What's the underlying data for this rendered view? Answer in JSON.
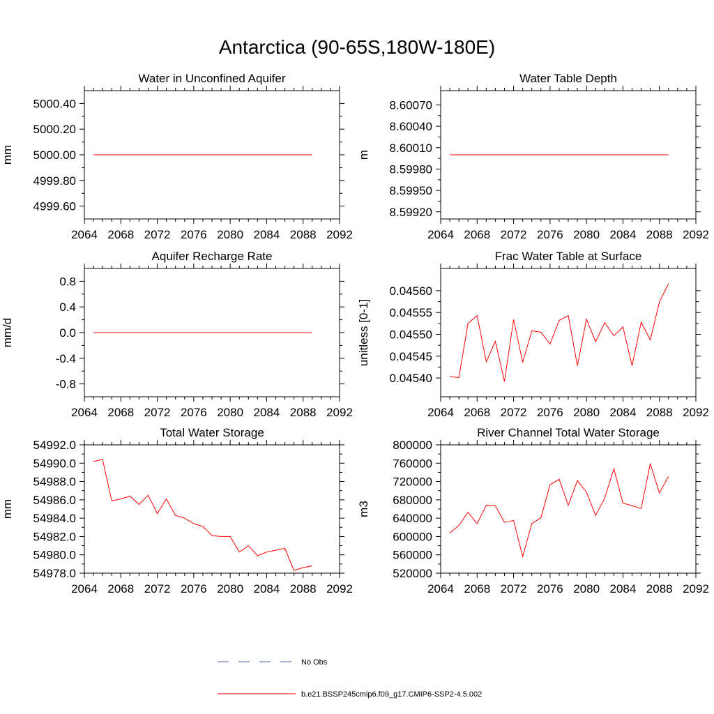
{
  "title": "Antarctica (90-65S,180W-180E)",
  "colors": {
    "model": "#ff0000",
    "obs": "#4f5fb0",
    "axis": "#000000"
  },
  "legend": {
    "obs_label": "No Obs",
    "model_label": "b.e21.BSSP245cmip6.f09_g17.CMIP6-SSP2-4.5.002"
  },
  "chart_data": [
    {
      "type": "line",
      "title": "Water in Unconfined Aquifer",
      "xlabel": "",
      "ylabel": "mm",
      "xlim": [
        2064,
        2092
      ],
      "ylim": [
        4999.5,
        5000.5
      ],
      "xticks": [
        2064,
        2068,
        2072,
        2076,
        2080,
        2084,
        2088,
        2092
      ],
      "xtick_labels": [
        "2064",
        "2068",
        "2072",
        "2076",
        "2080",
        "2084",
        "2088",
        "2092"
      ],
      "yticks": [
        4999.6,
        4999.8,
        5000.0,
        5000.2,
        5000.4
      ],
      "ytick_labels": [
        "4999.60",
        "4999.80",
        "5000.00",
        "5000.20",
        "5000.40"
      ],
      "grid": false,
      "x": [
        2065,
        2066,
        2067,
        2068,
        2069,
        2070,
        2071,
        2072,
        2073,
        2074,
        2075,
        2076,
        2077,
        2078,
        2079,
        2080,
        2081,
        2082,
        2083,
        2084,
        2085,
        2086,
        2087,
        2088,
        2089
      ],
      "series": [
        {
          "values": [
            5000,
            5000,
            5000,
            5000,
            5000,
            5000,
            5000,
            5000,
            5000,
            5000,
            5000,
            5000,
            5000,
            5000,
            5000,
            5000,
            5000,
            5000,
            5000,
            5000,
            5000,
            5000,
            5000,
            5000,
            5000
          ]
        }
      ]
    },
    {
      "type": "line",
      "title": "Water Table Depth",
      "xlabel": "",
      "ylabel": "m",
      "xlim": [
        2064,
        2092
      ],
      "ylim": [
        8.5991,
        8.6009
      ],
      "xticks": [
        2064,
        2068,
        2072,
        2076,
        2080,
        2084,
        2088,
        2092
      ],
      "xtick_labels": [
        "2064",
        "2068",
        "2072",
        "2076",
        "2080",
        "2084",
        "2088",
        "2092"
      ],
      "yticks": [
        8.5992,
        8.5995,
        8.5998,
        8.6001,
        8.6004,
        8.6007
      ],
      "ytick_labels": [
        "8.59920",
        "8.59950",
        "8.59980",
        "8.60010",
        "8.60040",
        "8.60070"
      ],
      "grid": false,
      "x": [
        2065,
        2066,
        2067,
        2068,
        2069,
        2070,
        2071,
        2072,
        2073,
        2074,
        2075,
        2076,
        2077,
        2078,
        2079,
        2080,
        2081,
        2082,
        2083,
        2084,
        2085,
        2086,
        2087,
        2088,
        2089
      ],
      "series": [
        {
          "values": [
            8.6,
            8.6,
            8.6,
            8.6,
            8.6,
            8.6,
            8.6,
            8.6,
            8.6,
            8.6,
            8.6,
            8.6,
            8.6,
            8.6,
            8.6,
            8.6,
            8.6,
            8.6,
            8.6,
            8.6,
            8.6,
            8.6,
            8.6,
            8.6,
            8.6
          ]
        }
      ]
    },
    {
      "type": "line",
      "title": "Aquifer Recharge Rate",
      "xlabel": "",
      "ylabel": "mm/d",
      "xlim": [
        2064,
        2092
      ],
      "ylim": [
        -1.0,
        1.0
      ],
      "xticks": [
        2064,
        2068,
        2072,
        2076,
        2080,
        2084,
        2088,
        2092
      ],
      "xtick_labels": [
        "2064",
        "2068",
        "2072",
        "2076",
        "2080",
        "2084",
        "2088",
        "2092"
      ],
      "yticks": [
        -0.8,
        -0.4,
        0.0,
        0.4,
        0.8
      ],
      "ytick_labels": [
        "-0.8",
        "-0.4",
        "0.0",
        "0.4",
        "0.8"
      ],
      "grid": false,
      "x": [
        2065,
        2066,
        2067,
        2068,
        2069,
        2070,
        2071,
        2072,
        2073,
        2074,
        2075,
        2076,
        2077,
        2078,
        2079,
        2080,
        2081,
        2082,
        2083,
        2084,
        2085,
        2086,
        2087,
        2088,
        2089
      ],
      "series": [
        {
          "values": [
            0,
            0,
            0,
            0,
            0,
            0,
            0,
            0,
            0,
            0,
            0,
            0,
            0,
            0,
            0,
            0,
            0,
            0,
            0,
            0,
            0,
            0,
            0,
            0,
            0
          ]
        }
      ]
    },
    {
      "type": "line",
      "title": "Frac Water Table at Surface",
      "xlabel": "",
      "ylabel": "unitless [0-1]",
      "xlim": [
        2064,
        2092
      ],
      "ylim": [
        0.045357,
        0.045651
      ],
      "xticks": [
        2064,
        2068,
        2072,
        2076,
        2080,
        2084,
        2088,
        2092
      ],
      "xtick_labels": [
        "2064",
        "2068",
        "2072",
        "2076",
        "2080",
        "2084",
        "2088",
        "2092"
      ],
      "yticks": [
        0.0454,
        0.04545,
        0.0455,
        0.04555,
        0.0456
      ],
      "ytick_labels": [
        "0.04540",
        "0.04545",
        "0.04550",
        "0.04555",
        "0.04560"
      ],
      "grid": false,
      "x": [
        2065,
        2066,
        2067,
        2068,
        2069,
        2070,
        2071,
        2072,
        2073,
        2074,
        2075,
        2076,
        2077,
        2078,
        2079,
        2080,
        2081,
        2082,
        2083,
        2084,
        2085,
        2086,
        2087,
        2088,
        2089
      ],
      "series": [
        {
          "values": [
            0.045403,
            0.045401,
            0.045525,
            0.045543,
            0.045437,
            0.045484,
            0.045392,
            0.045534,
            0.045436,
            0.045508,
            0.045505,
            0.045478,
            0.045532,
            0.045543,
            0.045428,
            0.045535,
            0.045483,
            0.045527,
            0.045497,
            0.045517,
            0.045428,
            0.045528,
            0.045487,
            0.045574,
            0.045616
          ]
        }
      ]
    },
    {
      "type": "line",
      "title": "Total Water Storage",
      "xlabel": "",
      "ylabel": "mm",
      "xlim": [
        2064,
        2092
      ],
      "ylim": [
        54978.0,
        54992.0
      ],
      "xticks": [
        2064,
        2068,
        2072,
        2076,
        2080,
        2084,
        2088,
        2092
      ],
      "xtick_labels": [
        "2064",
        "2068",
        "2072",
        "2076",
        "2080",
        "2084",
        "2088",
        "2092"
      ],
      "yticks": [
        54978,
        54980,
        54982,
        54984,
        54986,
        54988,
        54990,
        54992
      ],
      "ytick_labels": [
        "54978.0",
        "54980.0",
        "54982.0",
        "54984.0",
        "54986.0",
        "54988.0",
        "54990.0",
        "54992.0"
      ],
      "grid": false,
      "x": [
        2065,
        2066,
        2067,
        2068,
        2069,
        2070,
        2071,
        2072,
        2073,
        2074,
        2075,
        2076,
        2077,
        2078,
        2079,
        2080,
        2081,
        2082,
        2083,
        2084,
        2085,
        2086,
        2087,
        2088,
        2089
      ],
      "series": [
        {
          "values": [
            54990.2,
            54990.4,
            54985.9,
            54986.1,
            54986.4,
            54985.5,
            54986.5,
            54984.5,
            54986.1,
            54984.3,
            54984.0,
            54983.4,
            54983.1,
            54982.1,
            54982.0,
            54982.0,
            54980.3,
            54981.0,
            54979.9,
            54980.3,
            54980.5,
            54980.7,
            54978.3,
            54978.6,
            54978.8
          ]
        }
      ]
    },
    {
      "type": "line",
      "title": "River Channel Total Water Storage",
      "xlabel": "",
      "ylabel": "m3",
      "xlim": [
        2064,
        2092
      ],
      "ylim": [
        520000,
        800000
      ],
      "xticks": [
        2064,
        2068,
        2072,
        2076,
        2080,
        2084,
        2088,
        2092
      ],
      "xtick_labels": [
        "2064",
        "2068",
        "2072",
        "2076",
        "2080",
        "2084",
        "2088",
        "2092"
      ],
      "yticks": [
        520000,
        560000,
        600000,
        640000,
        680000,
        720000,
        760000,
        800000
      ],
      "ytick_labels": [
        "520000",
        "560000",
        "600000",
        "640000",
        "680000",
        "720000",
        "760000",
        "800000"
      ],
      "grid": false,
      "x": [
        2065,
        2066,
        2067,
        2068,
        2069,
        2070,
        2071,
        2072,
        2073,
        2074,
        2075,
        2076,
        2077,
        2078,
        2079,
        2080,
        2081,
        2082,
        2083,
        2084,
        2085,
        2086,
        2087,
        2088,
        2089
      ],
      "series": [
        {
          "values": [
            608000,
            624000,
            653000,
            628000,
            668000,
            667000,
            631000,
            635000,
            556000,
            628000,
            641000,
            713000,
            725000,
            668000,
            722000,
            697000,
            646000,
            684000,
            748000,
            673000,
            667000,
            661000,
            759000,
            695000,
            731000
          ]
        }
      ]
    }
  ]
}
